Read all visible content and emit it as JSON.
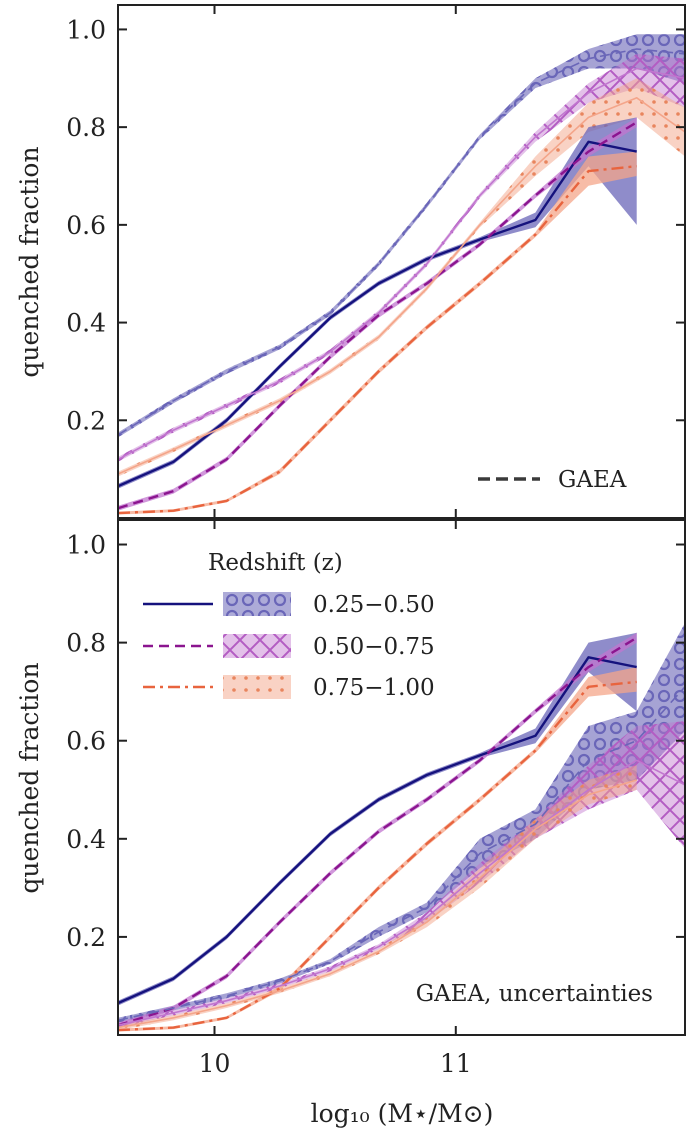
{
  "chart_data": [
    {
      "type": "line",
      "panel": "top",
      "ylabel": "quenched fraction",
      "xlim": [
        9.6,
        11.95
      ],
      "ylim": [
        0.0,
        1.05
      ],
      "yticks": [
        0.2,
        0.4,
        0.6,
        0.8,
        1.0
      ],
      "ytick_labels": [
        "0.2",
        "0.4",
        "0.6",
        "0.8",
        "1.0"
      ],
      "xticks": [
        10,
        11
      ],
      "xtick_labels": [
        "",
        ""
      ],
      "annotation": "GAEA",
      "annotation_position": "bottom-right",
      "series": [
        {
          "name": "0.25−0.50 observed",
          "style": "solid",
          "color": "#15127d",
          "x": [
            9.6,
            9.83,
            10.05,
            10.27,
            10.48,
            10.68,
            10.88,
            11.1,
            11.33,
            11.55,
            11.75
          ],
          "y": [
            0.065,
            0.115,
            0.2,
            0.31,
            0.41,
            0.48,
            0.53,
            0.57,
            0.61,
            0.77,
            0.75
          ],
          "band_lower": [
            0.06,
            0.11,
            0.195,
            0.305,
            0.405,
            0.475,
            0.525,
            0.565,
            0.595,
            0.72,
            0.6
          ],
          "band_upper": [
            0.07,
            0.12,
            0.205,
            0.315,
            0.415,
            0.485,
            0.535,
            0.575,
            0.625,
            0.8,
            0.82
          ]
        },
        {
          "name": "0.50−0.75 observed",
          "style": "dashed",
          "color": "#8b158f",
          "x": [
            9.6,
            9.83,
            10.05,
            10.27,
            10.48,
            10.68,
            10.88,
            11.1,
            11.33,
            11.55,
            11.75
          ],
          "y": [
            0.02,
            0.055,
            0.12,
            0.23,
            0.33,
            0.415,
            0.48,
            0.56,
            0.66,
            0.75,
            0.81
          ],
          "band_lower": [
            0.015,
            0.05,
            0.115,
            0.225,
            0.325,
            0.41,
            0.475,
            0.555,
            0.655,
            0.74,
            0.8
          ],
          "band_upper": [
            0.025,
            0.06,
            0.125,
            0.235,
            0.335,
            0.42,
            0.485,
            0.565,
            0.665,
            0.76,
            0.82
          ]
        },
        {
          "name": "0.75−1.00 observed",
          "style": "dashdot",
          "color": "#e8643e",
          "x": [
            9.6,
            9.83,
            10.05,
            10.27,
            10.48,
            10.68,
            10.88,
            11.1,
            11.33,
            11.55,
            11.75
          ],
          "y": [
            0.01,
            0.015,
            0.035,
            0.095,
            0.2,
            0.3,
            0.39,
            0.48,
            0.58,
            0.71,
            0.72
          ],
          "band_lower": [
            0.007,
            0.012,
            0.032,
            0.09,
            0.195,
            0.295,
            0.385,
            0.475,
            0.575,
            0.68,
            0.7
          ],
          "band_upper": [
            0.013,
            0.018,
            0.038,
            0.1,
            0.205,
            0.305,
            0.395,
            0.485,
            0.585,
            0.74,
            0.75
          ]
        },
        {
          "name": "0.25−0.50 GAEA",
          "style": "dashed",
          "color": "#6a66b8",
          "x": [
            9.6,
            9.83,
            10.05,
            10.27,
            10.48,
            10.68,
            10.88,
            11.1,
            11.33,
            11.55,
            11.75,
            11.95
          ],
          "y": [
            0.17,
            0.24,
            0.3,
            0.35,
            0.42,
            0.52,
            0.64,
            0.78,
            0.89,
            0.94,
            0.96,
            0.95
          ],
          "band_lower": [
            0.165,
            0.235,
            0.295,
            0.345,
            0.415,
            0.515,
            0.635,
            0.775,
            0.88,
            0.92,
            0.92,
            0.89
          ],
          "band_upper": [
            0.175,
            0.245,
            0.305,
            0.355,
            0.425,
            0.525,
            0.645,
            0.785,
            0.9,
            0.96,
            0.99,
            0.99
          ]
        },
        {
          "name": "0.50−0.75 GAEA",
          "style": "solid",
          "color": "#c176cf",
          "x": [
            9.6,
            9.83,
            10.05,
            10.27,
            10.48,
            10.68,
            10.88,
            11.1,
            11.33,
            11.55,
            11.75,
            11.95
          ],
          "y": [
            0.12,
            0.18,
            0.23,
            0.28,
            0.34,
            0.42,
            0.52,
            0.66,
            0.78,
            0.87,
            0.92,
            0.9
          ],
          "band_lower": [
            0.115,
            0.175,
            0.225,
            0.275,
            0.335,
            0.415,
            0.515,
            0.655,
            0.77,
            0.85,
            0.88,
            0.84
          ],
          "band_upper": [
            0.125,
            0.185,
            0.235,
            0.285,
            0.345,
            0.425,
            0.525,
            0.665,
            0.79,
            0.89,
            0.95,
            0.94
          ]
        },
        {
          "name": "0.75−1.00 GAEA",
          "style": "solid",
          "color": "#f4a58a",
          "x": [
            9.6,
            9.83,
            10.05,
            10.27,
            10.48,
            10.68,
            10.88,
            11.1,
            11.33,
            11.55,
            11.75,
            11.95
          ],
          "y": [
            0.09,
            0.14,
            0.19,
            0.24,
            0.3,
            0.37,
            0.47,
            0.6,
            0.72,
            0.82,
            0.86,
            0.79
          ],
          "band_lower": [
            0.085,
            0.135,
            0.185,
            0.235,
            0.295,
            0.365,
            0.465,
            0.595,
            0.7,
            0.79,
            0.82,
            0.74
          ],
          "band_upper": [
            0.095,
            0.145,
            0.195,
            0.245,
            0.305,
            0.375,
            0.475,
            0.605,
            0.74,
            0.85,
            0.9,
            0.84
          ]
        }
      ]
    },
    {
      "type": "line",
      "panel": "bottom",
      "ylabel": "quenched fraction",
      "xlabel": "log₁₀ (M⋆/M⊙)",
      "xlim": [
        9.6,
        11.95
      ],
      "ylim": [
        0.0,
        1.05
      ],
      "yticks": [
        0.2,
        0.4,
        0.6,
        0.8,
        1.0
      ],
      "ytick_labels": [
        "0.2",
        "0.4",
        "0.6",
        "0.8",
        "1.0"
      ],
      "xticks": [
        10,
        11
      ],
      "xtick_labels": [
        "10",
        "11"
      ],
      "annotation": "GAEA, uncertainties",
      "annotation_position": "bottom-right",
      "legend": {
        "title": "Redshift (z)",
        "position": "top-left",
        "entries": [
          "0.25−0.50",
          "0.50−0.75",
          "0.75−1.00"
        ]
      },
      "series": [
        {
          "name": "0.25−0.50 observed",
          "style": "solid",
          "color": "#15127d",
          "x": [
            9.6,
            9.83,
            10.05,
            10.27,
            10.48,
            10.68,
            10.88,
            11.1,
            11.33,
            11.55,
            11.75
          ],
          "y": [
            0.065,
            0.115,
            0.2,
            0.31,
            0.41,
            0.48,
            0.53,
            0.57,
            0.61,
            0.77,
            0.75
          ],
          "band_lower": [
            0.06,
            0.11,
            0.195,
            0.305,
            0.405,
            0.475,
            0.525,
            0.565,
            0.595,
            0.74,
            0.66
          ],
          "band_upper": [
            0.07,
            0.12,
            0.205,
            0.315,
            0.415,
            0.485,
            0.535,
            0.575,
            0.625,
            0.8,
            0.82
          ]
        },
        {
          "name": "0.50−0.75 observed",
          "style": "dashed",
          "color": "#8b158f",
          "x": [
            9.6,
            9.83,
            10.05,
            10.27,
            10.48,
            10.68,
            10.88,
            11.1,
            11.33,
            11.55,
            11.75
          ],
          "y": [
            0.02,
            0.055,
            0.12,
            0.23,
            0.33,
            0.415,
            0.48,
            0.56,
            0.66,
            0.75,
            0.81
          ],
          "band_lower": [
            0.015,
            0.05,
            0.115,
            0.225,
            0.325,
            0.41,
            0.475,
            0.555,
            0.655,
            0.74,
            0.8
          ],
          "band_upper": [
            0.025,
            0.06,
            0.125,
            0.235,
            0.335,
            0.42,
            0.485,
            0.565,
            0.665,
            0.76,
            0.82
          ]
        },
        {
          "name": "0.75−1.00 observed",
          "style": "dashdot",
          "color": "#e8643e",
          "x": [
            9.6,
            9.83,
            10.05,
            10.27,
            10.48,
            10.68,
            10.88,
            11.1,
            11.33,
            11.55,
            11.75
          ],
          "y": [
            0.01,
            0.015,
            0.035,
            0.095,
            0.2,
            0.3,
            0.39,
            0.48,
            0.58,
            0.71,
            0.72
          ],
          "band_lower": [
            0.007,
            0.012,
            0.032,
            0.09,
            0.195,
            0.295,
            0.385,
            0.475,
            0.575,
            0.69,
            0.7
          ],
          "band_upper": [
            0.013,
            0.018,
            0.038,
            0.1,
            0.205,
            0.305,
            0.395,
            0.485,
            0.585,
            0.73,
            0.75
          ]
        },
        {
          "name": "0.25−0.50 GAEA",
          "style": "dashed",
          "color": "#6a66b8",
          "x": [
            9.6,
            9.83,
            10.05,
            10.27,
            10.48,
            10.68,
            10.88,
            11.1,
            11.33,
            11.55,
            11.75,
            11.95
          ],
          "y": [
            0.03,
            0.055,
            0.08,
            0.11,
            0.15,
            0.21,
            0.26,
            0.37,
            0.43,
            0.56,
            0.6,
            0.71
          ],
          "band_lower": [
            0.025,
            0.05,
            0.075,
            0.105,
            0.145,
            0.2,
            0.25,
            0.34,
            0.4,
            0.5,
            0.52,
            0.62
          ],
          "band_upper": [
            0.035,
            0.06,
            0.085,
            0.115,
            0.155,
            0.22,
            0.27,
            0.4,
            0.46,
            0.63,
            0.66,
            0.84
          ]
        },
        {
          "name": "0.50−0.75 GAEA",
          "style": "solid",
          "color": "#c176cf",
          "x": [
            9.6,
            9.83,
            10.05,
            10.27,
            10.48,
            10.68,
            10.88,
            11.1,
            11.33,
            11.55,
            11.75,
            11.95
          ],
          "y": [
            0.02,
            0.045,
            0.07,
            0.1,
            0.135,
            0.18,
            0.24,
            0.33,
            0.42,
            0.5,
            0.56,
            0.51
          ],
          "band_lower": [
            0.015,
            0.04,
            0.065,
            0.095,
            0.13,
            0.175,
            0.23,
            0.31,
            0.4,
            0.46,
            0.5,
            0.38
          ],
          "band_upper": [
            0.025,
            0.05,
            0.075,
            0.105,
            0.14,
            0.185,
            0.25,
            0.35,
            0.44,
            0.55,
            0.63,
            0.64
          ]
        },
        {
          "name": "0.75−1.00 GAEA",
          "style": "solid",
          "color": "#f4a58a",
          "x": [
            9.6,
            9.83,
            10.05,
            10.27,
            10.48,
            10.68,
            10.88,
            11.1,
            11.33,
            11.55,
            11.75
          ],
          "y": [
            0.015,
            0.035,
            0.06,
            0.09,
            0.125,
            0.17,
            0.23,
            0.32,
            0.42,
            0.49,
            0.52
          ],
          "band_lower": [
            0.01,
            0.03,
            0.055,
            0.085,
            0.12,
            0.165,
            0.22,
            0.3,
            0.4,
            0.47,
            0.5
          ],
          "band_upper": [
            0.02,
            0.04,
            0.065,
            0.095,
            0.13,
            0.175,
            0.24,
            0.34,
            0.44,
            0.52,
            0.55
          ]
        }
      ]
    }
  ]
}
